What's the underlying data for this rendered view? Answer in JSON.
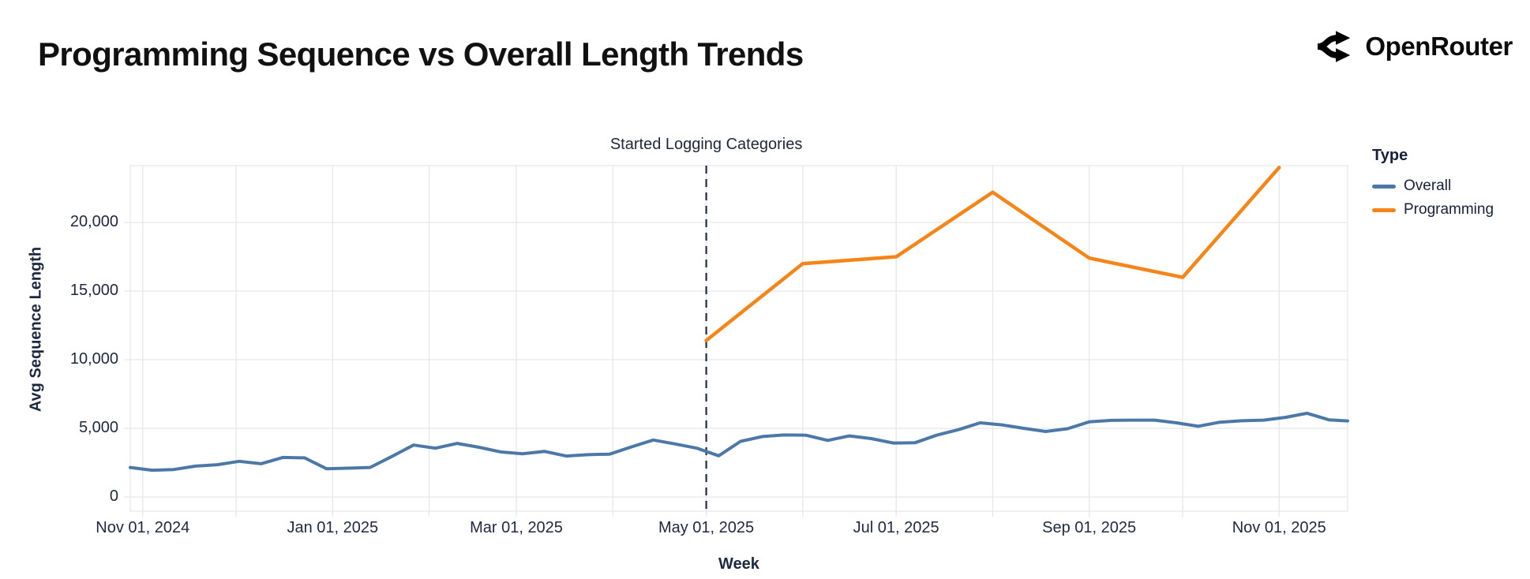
{
  "header": {
    "title": "Programming Sequence vs Overall Length Trends",
    "brand": "OpenRouter"
  },
  "chart_data": {
    "type": "line",
    "title": "Programming Sequence vs Overall Length Trends",
    "xlabel": "Week",
    "ylabel": "Avg Sequence Length",
    "x_tick_labels": [
      "Nov 01, 2024",
      "Jan 01, 2025",
      "Mar 01, 2025",
      "May 01, 2025",
      "Jul 01, 2025",
      "Sep 01, 2025",
      "Nov 01, 2025"
    ],
    "x_tick_days": [
      0,
      61,
      120,
      181,
      242,
      304,
      365
    ],
    "month_gridline_days": [
      0,
      30,
      61,
      92,
      120,
      151,
      181,
      212,
      242,
      273,
      304,
      334,
      365
    ],
    "y_tick_labels": [
      "0",
      "5,000",
      "10,000",
      "15,000",
      "20,000"
    ],
    "y_ticks": [
      0,
      5000,
      10000,
      15000,
      20000
    ],
    "ylim": [
      0,
      24000
    ],
    "x_domain_days": [
      -4,
      387
    ],
    "grid": true,
    "grid_color": "#e6e6ed",
    "legend_position": "right",
    "annotation": {
      "label": "Started Logging Categories",
      "day": 181,
      "color": "#212b3e"
    },
    "legend": {
      "title": "Type",
      "items": [
        {
          "label": "Overall",
          "color": "#4c78a8"
        },
        {
          "label": "Programming",
          "color": "#f58518"
        }
      ]
    },
    "series": [
      {
        "name": "Overall",
        "color": "#4c78a8",
        "width": 4,
        "points": [
          [
            -4,
            2150
          ],
          [
            3,
            1950
          ],
          [
            10,
            2000
          ],
          [
            17,
            2250
          ],
          [
            24,
            2350
          ],
          [
            31,
            2600
          ],
          [
            38,
            2420
          ],
          [
            45,
            2880
          ],
          [
            52,
            2850
          ],
          [
            59,
            2060
          ],
          [
            66,
            2100
          ],
          [
            73,
            2150
          ],
          [
            80,
            2950
          ],
          [
            87,
            3780
          ],
          [
            94,
            3550
          ],
          [
            101,
            3900
          ],
          [
            108,
            3620
          ],
          [
            115,
            3280
          ],
          [
            122,
            3150
          ],
          [
            129,
            3320
          ],
          [
            136,
            2980
          ],
          [
            143,
            3080
          ],
          [
            150,
            3120
          ],
          [
            157,
            3650
          ],
          [
            164,
            4150
          ],
          [
            171,
            3860
          ],
          [
            178,
            3550
          ],
          [
            185,
            3000
          ],
          [
            192,
            4050
          ],
          [
            199,
            4400
          ],
          [
            206,
            4520
          ],
          [
            213,
            4500
          ],
          [
            220,
            4120
          ],
          [
            227,
            4450
          ],
          [
            234,
            4250
          ],
          [
            241,
            3930
          ],
          [
            248,
            3950
          ],
          [
            255,
            4500
          ],
          [
            262,
            4900
          ],
          [
            269,
            5400
          ],
          [
            276,
            5250
          ],
          [
            283,
            5000
          ],
          [
            290,
            4770
          ],
          [
            297,
            4970
          ],
          [
            304,
            5470
          ],
          [
            311,
            5580
          ],
          [
            318,
            5600
          ],
          [
            325,
            5600
          ],
          [
            332,
            5400
          ],
          [
            339,
            5150
          ],
          [
            346,
            5450
          ],
          [
            353,
            5550
          ],
          [
            360,
            5600
          ],
          [
            367,
            5800
          ],
          [
            374,
            6100
          ],
          [
            381,
            5620
          ],
          [
            387,
            5540
          ]
        ]
      },
      {
        "name": "Programming",
        "color": "#f58518",
        "width": 4.5,
        "points": [
          [
            181,
            11400
          ],
          [
            212,
            17000
          ],
          [
            242,
            17500
          ],
          [
            273,
            22200
          ],
          [
            304,
            17400
          ],
          [
            334,
            16000
          ],
          [
            365,
            24000
          ]
        ]
      }
    ]
  }
}
